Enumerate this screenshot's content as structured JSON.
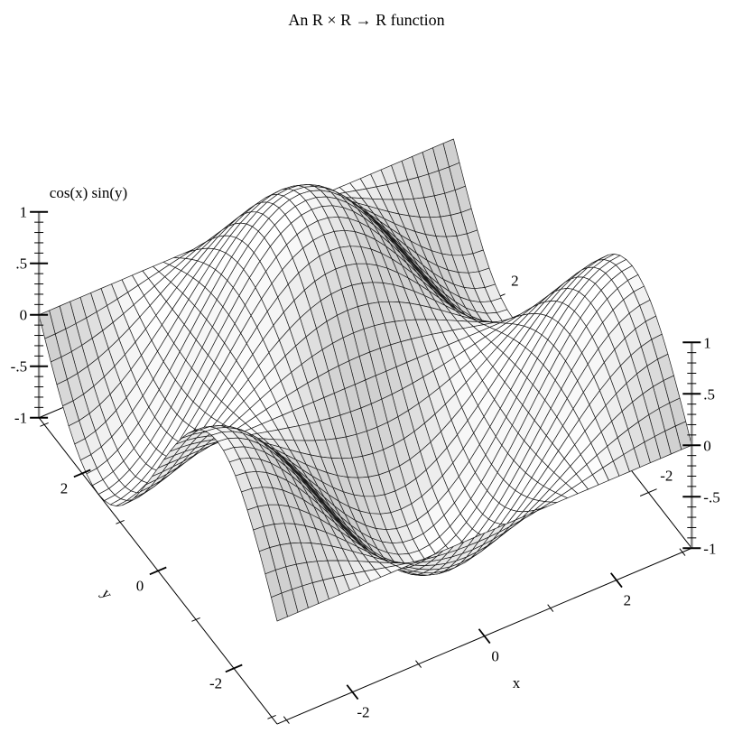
{
  "chart_data": {
    "type": "surface",
    "title": "An R × R → R function",
    "function": "cos(x) sin(y)",
    "xlabel": "x",
    "ylabel": "y",
    "zlabel": "cos(x) sin(y)",
    "xlim": [
      -3.14159,
      3.14159
    ],
    "ylim": [
      -3.14159,
      3.14159
    ],
    "zlim": [
      -1,
      1
    ],
    "x_ticks": [
      {
        "value": -2,
        "label": "-2"
      },
      {
        "value": 0,
        "label": "0"
      },
      {
        "value": 2,
        "label": "2"
      }
    ],
    "x_minor_ticks": [
      -3,
      -1,
      1,
      3
    ],
    "y_ticks": [
      {
        "value": -2,
        "label": "-2"
      },
      {
        "value": 0,
        "label": "0"
      },
      {
        "value": 2,
        "label": "2"
      }
    ],
    "y_minor_ticks": [
      -3,
      -1,
      1,
      3
    ],
    "far_y_ticks": [
      {
        "value": -2,
        "label": "-2"
      },
      {
        "value": 2,
        "label": "2"
      }
    ],
    "z_ticks": [
      {
        "value": -1,
        "label": "-1"
      },
      {
        "value": -0.5,
        "label": "-.5"
      },
      {
        "value": 0,
        "label": "0"
      },
      {
        "value": 0.5,
        "label": ".5"
      },
      {
        "value": 1,
        "label": "1"
      }
    ],
    "z_minor_step": 0.1,
    "grid": true,
    "surface_color": "#ffffff",
    "line_color": "#000000"
  }
}
